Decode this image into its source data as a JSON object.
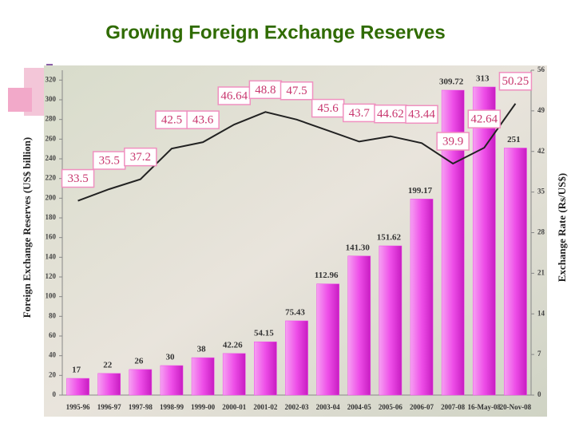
{
  "chart_data": {
    "type": "bar-line",
    "title": "Growing Foreign Exchange Reserves",
    "y_label": "Foreign Exchange Reserves (US$ billion)",
    "y2_label": "Exchange Rate (Rs/US$)",
    "categories": [
      "1995-96",
      "1996-97",
      "1997-98",
      "1998-99",
      "1999-00",
      "2000-01",
      "2001-02",
      "2002-03",
      "2003-04",
      "2004-05",
      "2005-06",
      "2006-07",
      "2007-08",
      "16-May-08",
      "20-Nov-08"
    ],
    "series": [
      {
        "name": "Foreign Exchange Reserves",
        "type": "bar",
        "color": "#ee4ee8",
        "values": [
          17,
          22,
          26,
          30,
          38,
          42.26,
          54.15,
          75.43,
          112.96,
          141.3,
          151.62,
          199.17,
          309.72,
          313,
          251
        ],
        "value_labels": [
          "17",
          "22",
          "26",
          "30",
          "38",
          "42.26",
          "54.15",
          "75.43",
          "112.96",
          "141.30",
          "151.62",
          "199.17",
          "309.72",
          "313",
          "251"
        ]
      },
      {
        "name": "Exchange Rate",
        "type": "line",
        "axis": "y2",
        "color": "#222222",
        "values": [
          33.5,
          35.5,
          37.2,
          42.5,
          43.6,
          46.64,
          48.8,
          47.5,
          45.6,
          43.7,
          44.62,
          43.44,
          39.9,
          42.64,
          50.25
        ]
      }
    ],
    "ylim": [
      0,
      330
    ],
    "yticks": [
      0,
      20,
      40,
      60,
      80,
      100,
      120,
      140,
      160,
      180,
      200,
      220,
      240,
      260,
      280,
      300,
      320
    ],
    "y2lim": [
      0,
      56
    ],
    "y2ticks": [
      0,
      7,
      14,
      21,
      28,
      35,
      42,
      49,
      56
    ]
  }
}
